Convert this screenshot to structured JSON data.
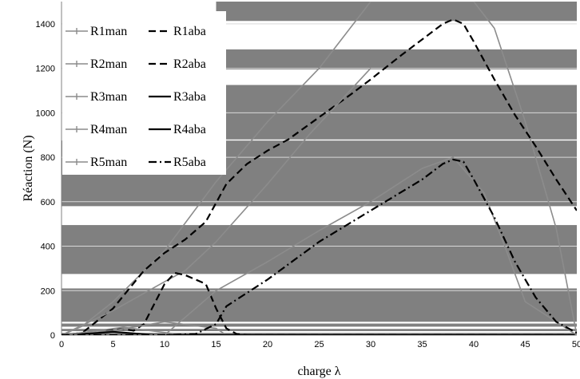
{
  "chart_data": {
    "type": "line",
    "title": "",
    "xlabel": "charge λ",
    "ylabel": "Réaction (N)",
    "xlim": [
      0,
      50
    ],
    "ylim": [
      0,
      1500
    ],
    "xticks": [
      "0",
      "5",
      "10",
      "15",
      "20",
      "25",
      "30",
      "35",
      "40",
      "45",
      "50"
    ],
    "yticks": [
      "0",
      "200",
      "400",
      "600",
      "800",
      "1000",
      "1200",
      "1400"
    ],
    "grid": true,
    "legend_position": "top-left",
    "bands": [
      {
        "y0": 1413,
        "y1": 1500,
        "x_start": 15
      },
      {
        "y0": 1195,
        "y1": 1285,
        "x_start": 15
      },
      {
        "y0": 880,
        "y1": 1125,
        "x_start": 15
      },
      {
        "y0": 580,
        "y1": 875,
        "x_start": 0
      },
      {
        "y0": 275,
        "y1": 495,
        "x_start": 0
      },
      {
        "y0": 60,
        "y1": 210,
        "x_start": 0
      },
      {
        "y0": 38,
        "y1": 52,
        "x_start": 0
      },
      {
        "y0": 18,
        "y1": 28,
        "x_start": 0
      },
      {
        "y0": 3,
        "y1": 10,
        "x_start": 0
      }
    ],
    "series": [
      {
        "name": "R1man",
        "style": "man",
        "color": "#8c8c8c",
        "x": [
          0,
          2,
          5,
          10,
          15,
          20,
          25,
          28,
          30,
          40,
          42,
          45,
          48,
          50
        ],
        "y": [
          0,
          40,
          150,
          380,
          690,
          960,
          1200,
          1380,
          1500,
          1500,
          1380,
          960,
          480,
          0
        ]
      },
      {
        "name": "R1aba",
        "style": "dash",
        "color": "#000000",
        "x": [
          0,
          2,
          5,
          8,
          10,
          12,
          14,
          16,
          18,
          20,
          22,
          25,
          28,
          30,
          33,
          35,
          37,
          38,
          39,
          40,
          42,
          44,
          46,
          48,
          50
        ],
        "y": [
          0,
          10,
          120,
          290,
          370,
          430,
          510,
          680,
          770,
          830,
          880,
          980,
          1080,
          1150,
          1260,
          1330,
          1400,
          1420,
          1400,
          1320,
          1150,
          990,
          850,
          700,
          560
        ]
      },
      {
        "name": "R2man",
        "style": "man",
        "color": "#8c8c8c",
        "x": [
          0,
          5,
          10,
          12,
          15,
          20,
          24,
          30
        ],
        "y": [
          0,
          110,
          240,
          290,
          420,
          680,
          900,
          1200
        ]
      },
      {
        "name": "R2aba",
        "style": "dash",
        "color": "#000000",
        "x": [
          0,
          2,
          4,
          5,
          6,
          7,
          8,
          9,
          10,
          11,
          12,
          13,
          14,
          15,
          16,
          17,
          18,
          50
        ],
        "y": [
          0,
          3,
          15,
          25,
          28,
          20,
          50,
          140,
          230,
          280,
          270,
          250,
          230,
          120,
          30,
          5,
          0,
          0
        ]
      },
      {
        "name": "R3man",
        "style": "man",
        "color": "#8c8c8c",
        "x": [
          0,
          5,
          10,
          15,
          16,
          50
        ],
        "y": [
          0,
          20,
          60,
          30,
          0,
          0
        ]
      },
      {
        "name": "R3aba",
        "style": "solid",
        "color": "#000000",
        "x": [
          0,
          3,
          5,
          7,
          9,
          50
        ],
        "y": [
          0,
          8,
          15,
          8,
          0,
          0
        ]
      },
      {
        "name": "R4man",
        "style": "man",
        "color": "#8c8c8c",
        "x": [
          0,
          6,
          12,
          50
        ],
        "y": [
          0,
          35,
          0,
          0
        ]
      },
      {
        "name": "R4aba",
        "style": "solid",
        "color": "#000000",
        "x": [
          0,
          50
        ],
        "y": [
          0,
          0
        ]
      },
      {
        "name": "R5man",
        "style": "man",
        "color": "#8c8c8c",
        "x": [
          0,
          10,
          15,
          20,
          25,
          30,
          35,
          38,
          41,
          43,
          45,
          50
        ],
        "y": [
          0,
          0,
          200,
          330,
          470,
          600,
          750,
          800,
          640,
          400,
          150,
          0
        ]
      },
      {
        "name": "R5aba",
        "style": "dashdot",
        "color": "#000000",
        "x": [
          0,
          10,
          13,
          15,
          16,
          20,
          25,
          30,
          35,
          37,
          38,
          39,
          40,
          42,
          44,
          46,
          48,
          50
        ],
        "y": [
          0,
          0,
          5,
          50,
          130,
          250,
          420,
          560,
          700,
          770,
          790,
          780,
          700,
          530,
          330,
          170,
          60,
          10
        ]
      }
    ],
    "legend": [
      [
        "R1man",
        "R1aba"
      ],
      [
        "R2man",
        "R2aba"
      ],
      [
        "R3man",
        "R3aba"
      ],
      [
        "R4man",
        "R4aba"
      ],
      [
        "R5man",
        "R5aba"
      ]
    ]
  }
}
